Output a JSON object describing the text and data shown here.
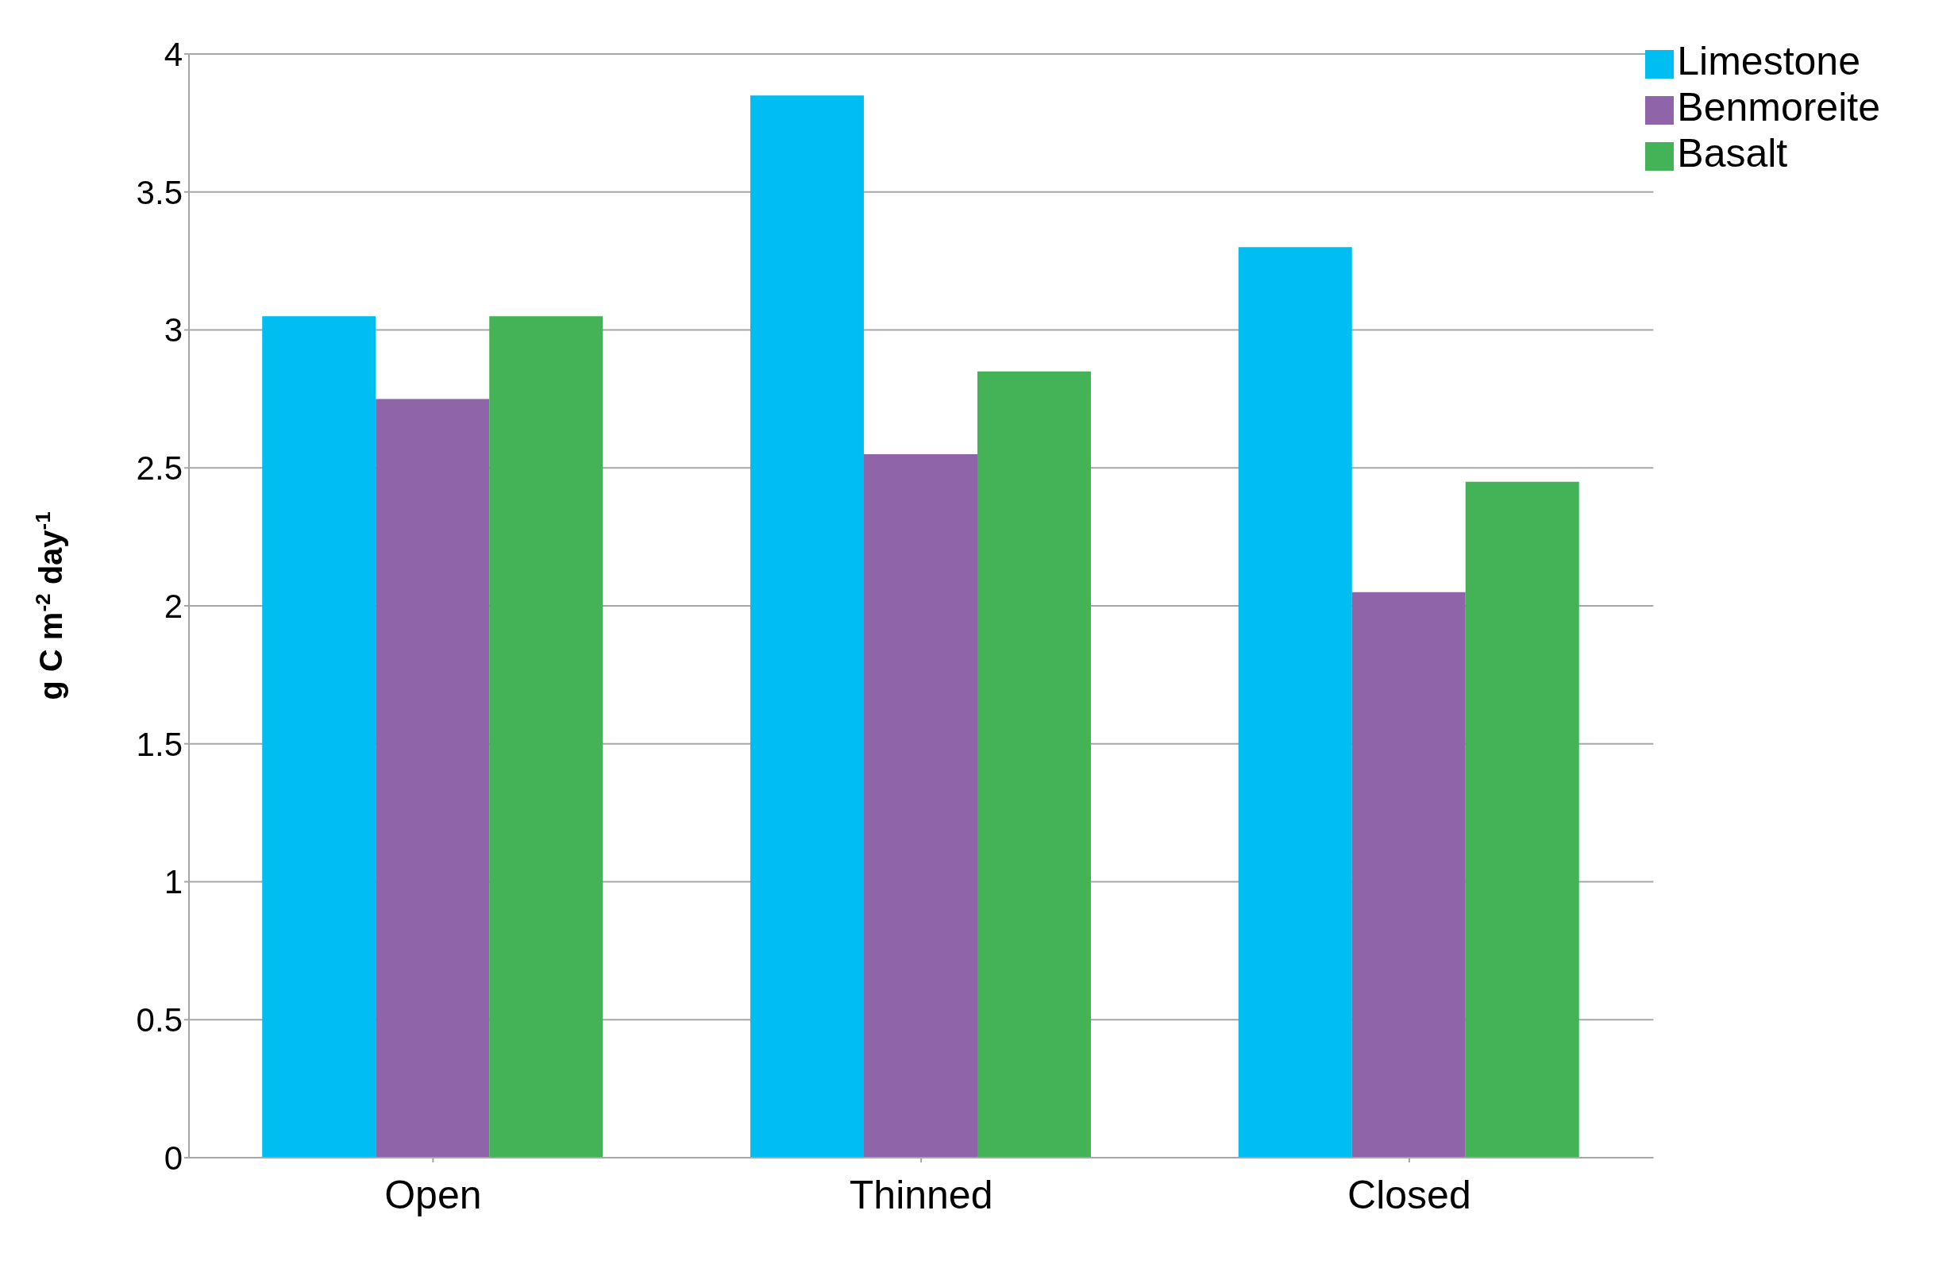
{
  "chart_data": {
    "type": "bar",
    "ylabel": "g C m$^{-2}$ day$^{-1}$",
    "categories": [
      "Open",
      "Thinned",
      "Closed"
    ],
    "series": [
      {
        "name": "Limestone",
        "color": "#00bdf2",
        "values": [
          3.05,
          3.85,
          3.3
        ]
      },
      {
        "name": "Benmoreite",
        "color": "#8f64a8",
        "values": [
          2.75,
          2.55,
          2.05
        ]
      },
      {
        "name": "Basalt",
        "color": "#44b357",
        "values": [
          3.05,
          2.85,
          2.45
        ]
      }
    ],
    "ylim": [
      0,
      4
    ],
    "yticks": [
      0,
      0.5,
      1,
      1.5,
      2,
      2.5,
      3,
      3.5,
      4
    ],
    "grid": "y",
    "legend": "top right"
  }
}
